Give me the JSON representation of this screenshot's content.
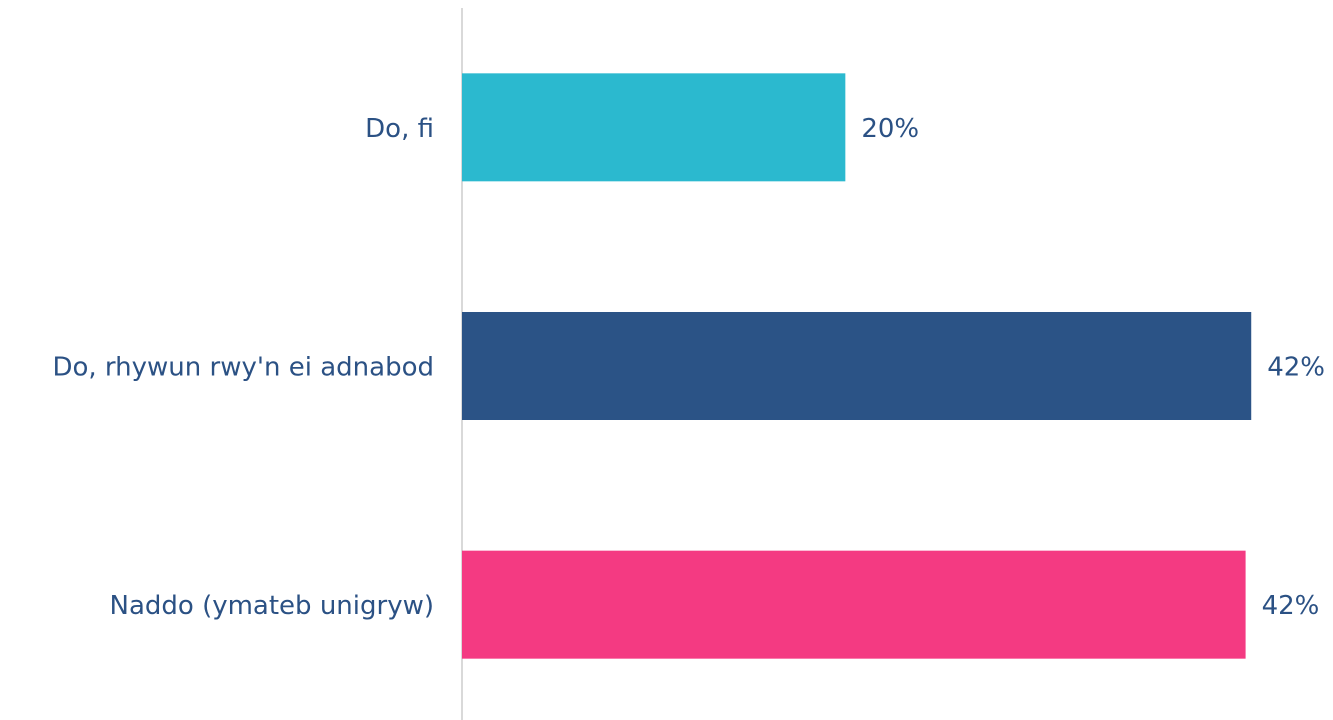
{
  "chart_data": {
    "type": "hbar",
    "categories": [
      "Do, fi",
      "Do, rhywun rwy'n ei adnabod",
      "Naddo (ymateb unigryw)"
    ],
    "values": [
      20.4,
      42.0,
      41.7
    ],
    "value_labels": [
      "20%",
      "42%",
      "42%"
    ],
    "colors": [
      "#2bb9cf",
      "#2b5386",
      "#f43a82"
    ],
    "xlim": [
      0,
      45
    ]
  }
}
